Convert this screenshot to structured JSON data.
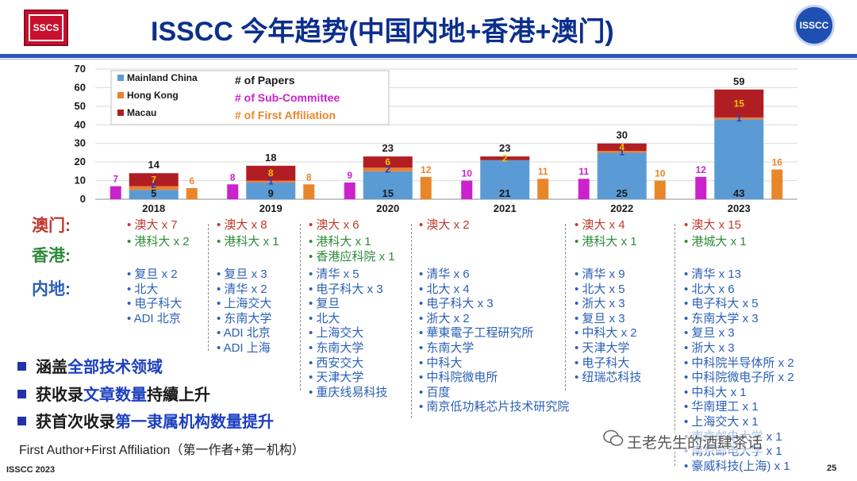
{
  "title": "ISSCC 今年趋势(中国内地+香港+澳门)",
  "logo_left_text": "SSCS",
  "logo_right_text": "ISSCC",
  "chart_data": {
    "type": "bar",
    "categories": [
      "2018",
      "2019",
      "2020",
      "2021",
      "2022",
      "2023"
    ],
    "ylim": [
      0,
      70
    ],
    "yticks": [
      "0",
      "10",
      "20",
      "30",
      "40",
      "50",
      "60",
      "70"
    ],
    "series": [
      {
        "name": "Mainland China",
        "color": "#5b9bd5",
        "values": [
          5,
          9,
          15,
          21,
          25,
          43
        ],
        "labels": [
          "5",
          "9",
          "15",
          "21",
          "25",
          "43"
        ],
        "label_color": "#1a1a1a"
      },
      {
        "name": "Hong Kong",
        "color": "#ed7d31",
        "values": [
          2,
          1,
          2,
          0,
          1,
          1
        ],
        "labels": [
          "2",
          "1",
          "2",
          "",
          "1",
          "1"
        ],
        "label_color": "#1f3fbf"
      },
      {
        "name": "Macau",
        "color": "#b01e23",
        "values": [
          7,
          8,
          6,
          2,
          4,
          15
        ],
        "labels": [
          "7",
          "8",
          "6",
          "2",
          "4",
          "15"
        ],
        "label_color": "#f2c200"
      }
    ],
    "totals": [
      "14",
      "18",
      "23",
      "23",
      "30",
      "59"
    ],
    "totals_values": [
      14,
      18,
      23,
      23,
      30,
      59
    ],
    "sub_committee": {
      "name": "# of Sub-Committee",
      "color": "#cc22cc",
      "values": [
        7,
        8,
        9,
        10,
        11,
        12
      ]
    },
    "first_affiliation": {
      "name": "# of First Affiliation",
      "color": "#e8862a",
      "values": [
        6,
        8,
        12,
        11,
        10,
        16
      ]
    },
    "papers_legend": "# of Papers",
    "legend_position": "top-left"
  },
  "row_labels": {
    "macau": "澳门:",
    "hongkong": "香港:",
    "mainland": "内地:"
  },
  "affiliations": [
    {
      "year": "2018",
      "macau": [
        "澳大 x 7"
      ],
      "hongkong": [
        "港科大 x 2"
      ],
      "mainland": [
        "复旦 x 2",
        "北大",
        "电子科大",
        "ADI 北京"
      ]
    },
    {
      "year": "2019",
      "macau": [
        "澳大 x 8"
      ],
      "hongkong": [
        "港科大 x 1"
      ],
      "mainland": [
        "复旦 x 3",
        "清华 x 2",
        "上海交大",
        "东南大学",
        "ADI 北京",
        "ADI 上海"
      ]
    },
    {
      "year": "2020",
      "macau": [
        "澳大 x 6"
      ],
      "hongkong": [
        "港科大 x 1",
        "香港应科院 x 1"
      ],
      "mainland": [
        "清华 x 5",
        "电子科大 x 3",
        "复旦",
        "北大",
        "上海交大",
        "东南大学",
        "西安交大",
        "天津大学",
        "重庆线易科技"
      ]
    },
    {
      "year": "2021",
      "macau": [
        "澳大 x 2"
      ],
      "hongkong": [],
      "mainland": [
        "清华 x 6",
        "北大 x 4",
        "电子科大 x 3",
        "浙大 x 2",
        "華東電子工程研究所",
        "东南大学",
        "中科大",
        "中科院微电所",
        "百度",
        "南京低功耗芯片技术研究院"
      ]
    },
    {
      "year": "2022",
      "macau": [
        "澳大 x 4"
      ],
      "hongkong": [
        "港科大 x 1"
      ],
      "mainland": [
        "清华 x 9",
        "北大 x 5",
        "浙大 x 3",
        "复旦 x 3",
        "中科大 x 2",
        "天津大学",
        "电子科大",
        "纽瑞芯科技"
      ]
    },
    {
      "year": "2023",
      "macau": [
        "澳大 x 15"
      ],
      "hongkong": [
        "港城大 x 1"
      ],
      "mainland": [
        "清华 x 13",
        "北大 x 6",
        "电子科大 x 5",
        "东南大学 x 3",
        "复旦 x 3",
        "浙大 x 3",
        "中科院半导体所 x 2",
        "中科院微电子所 x 2",
        "中科大 x 1",
        "华南理工 x 1",
        "上海交大 x 1",
        "南京邮电大学 x 1",
        "南京邮电大学 x 1",
        "豪威科技(上海) x 1"
      ]
    }
  ],
  "bullets": [
    {
      "pre": "涵盖",
      "hl": "全部技术领域",
      "post": ""
    },
    {
      "pre": "获收录",
      "hl": "文章数量",
      "post": "持續上升"
    },
    {
      "pre": "获首次收录",
      "hl": "第一隶属机构数量提升",
      "post": ""
    }
  ],
  "footnote": "First Author+First Affiliation（第一作者+第一机构）",
  "footer_left": "ISSCC 2023",
  "page_number": "25",
  "watermark": "王老先生的酒肆茶话"
}
